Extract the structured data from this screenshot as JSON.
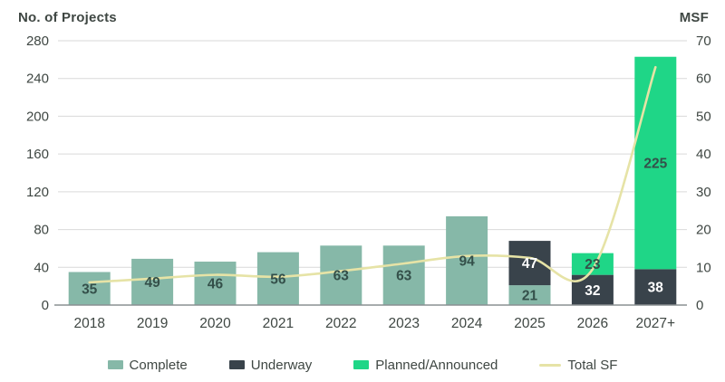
{
  "header": {
    "left_axis_title": "No. of Projects",
    "right_axis_title": "MSF"
  },
  "colors": {
    "complete": "#86b8a8",
    "underway": "#39434b",
    "planned": "#1fd687",
    "total_sf_line": "#e6e3a6",
    "gridline": "#d9d9d9",
    "baseline": "#8a9092",
    "text_dark": "#3f4743",
    "bar_label_on_light": "#34504a",
    "bar_label_on_dark": "#ffffff",
    "background": "#ffffff"
  },
  "chart_data": {
    "type": "bar",
    "subtype": "stacked-bar-with-line",
    "categories": [
      "2018",
      "2019",
      "2020",
      "2021",
      "2022",
      "2023",
      "2024",
      "2025",
      "2026",
      "2027+"
    ],
    "series": [
      {
        "name": "Complete",
        "color": "#86b8a8",
        "label_color": "#34504a",
        "values": [
          35,
          49,
          46,
          56,
          63,
          63,
          94,
          21,
          0,
          0
        ]
      },
      {
        "name": "Underway",
        "color": "#39434b",
        "label_color": "#ffffff",
        "values": [
          0,
          0,
          0,
          0,
          0,
          0,
          0,
          47,
          32,
          38
        ]
      },
      {
        "name": "Planned/Announced",
        "color": "#1fd687",
        "label_color": "#34504a",
        "values": [
          0,
          0,
          0,
          0,
          0,
          0,
          0,
          0,
          23,
          225
        ]
      }
    ],
    "line_series": {
      "name": "Total SF",
      "color": "#e6e3a6",
      "axis": "right",
      "values": [
        6,
        7,
        8,
        7.5,
        9,
        11,
        13,
        12.5,
        9.5,
        63
      ]
    },
    "left_axis": {
      "title": "No. of Projects",
      "min": 0,
      "max": 280,
      "ticks": [
        280,
        240,
        200,
        160,
        120,
        80,
        40,
        0
      ]
    },
    "right_axis": {
      "title": "MSF",
      "min": 0,
      "max": 70,
      "ticks": [
        70,
        60,
        50,
        40,
        30,
        20,
        10,
        0
      ]
    },
    "grid": true,
    "legend_position": "bottom"
  },
  "legend": {
    "items": [
      {
        "label": "Complete",
        "color": "#86b8a8",
        "swatch": "square"
      },
      {
        "label": "Underway",
        "color": "#39434b",
        "swatch": "square"
      },
      {
        "label": "Planned/Announced",
        "color": "#1fd687",
        "swatch": "square"
      },
      {
        "label": "Total SF",
        "color": "#e6e3a6",
        "swatch": "line"
      }
    ]
  }
}
